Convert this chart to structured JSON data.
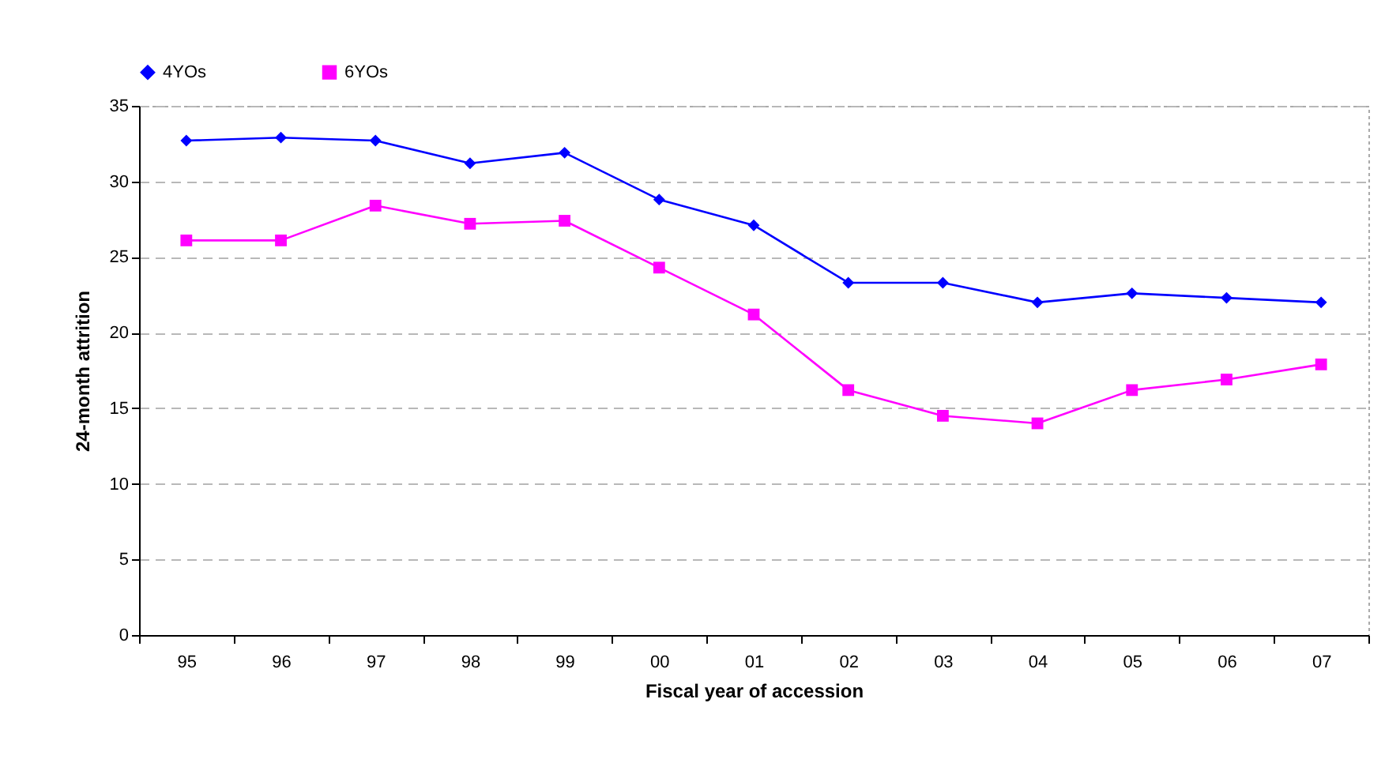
{
  "chart_data": {
    "type": "line",
    "xlabel": "Fiscal year of accession",
    "ylabel": "24-month attrition",
    "categories": [
      "95",
      "96",
      "97",
      "98",
      "99",
      "00",
      "01",
      "02",
      "03",
      "04",
      "05",
      "06",
      "07"
    ],
    "series": [
      {
        "name": "4YOs",
        "color": "#0000ff",
        "marker": "diamond",
        "values": [
          32.7,
          32.9,
          32.7,
          31.2,
          31.9,
          28.8,
          27.1,
          23.3,
          23.3,
          22.0,
          22.6,
          22.3,
          22.0
        ]
      },
      {
        "name": "6YOs",
        "color": "#ff00ff",
        "marker": "square",
        "values": [
          26.1,
          26.1,
          28.4,
          27.2,
          27.4,
          24.3,
          21.2,
          16.2,
          14.5,
          14.0,
          16.2,
          16.9,
          17.9
        ]
      }
    ],
    "ylim": [
      0,
      35
    ],
    "yticks": [
      0,
      5,
      10,
      15,
      20,
      25,
      30,
      35
    ],
    "grid": "y",
    "legend": "top"
  }
}
